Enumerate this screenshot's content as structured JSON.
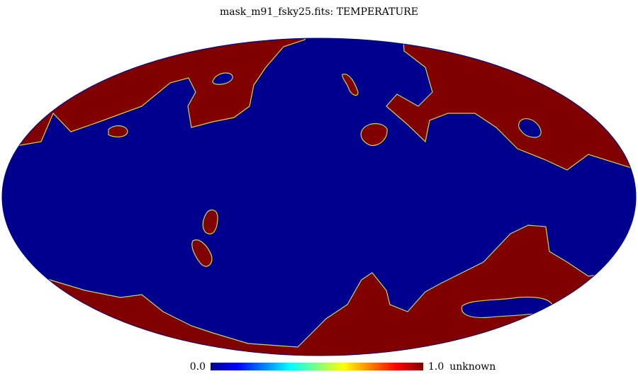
{
  "title": "mask_m91_fsky25.fits: TEMPERATURE",
  "colorbar": {
    "min": {
      "value": 0,
      "label": "0.0"
    },
    "max": {
      "value": 1,
      "label": "1.0"
    },
    "unit": "unknown"
  }
}
